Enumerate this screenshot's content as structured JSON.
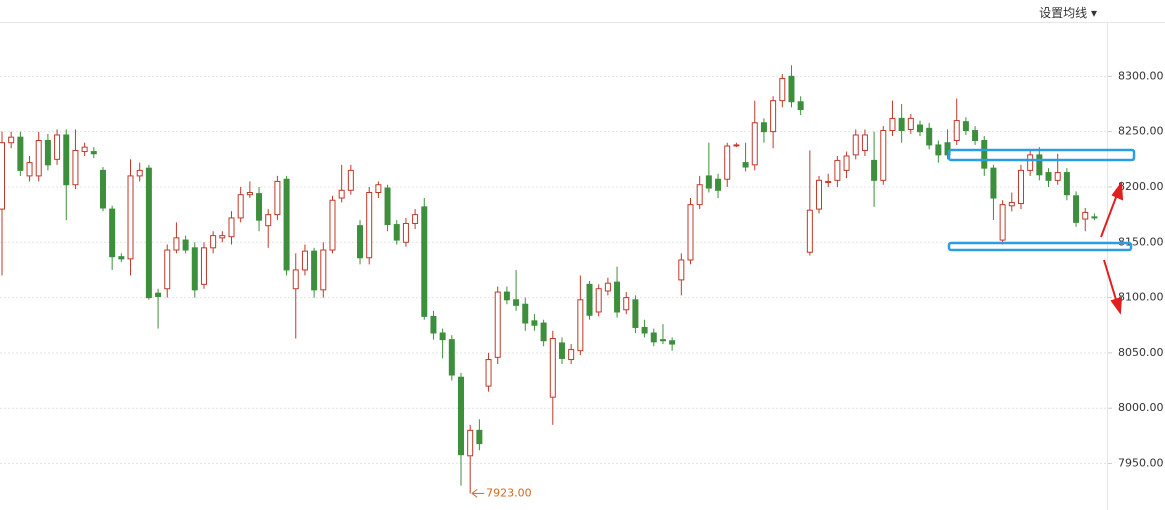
{
  "menu_label": "设置均线",
  "chart_data": {
    "type": "candlestick",
    "ylim": [
      7908,
      8369
    ],
    "yticks": [
      {
        "value": 7950,
        "label": "7950.00"
      },
      {
        "value": 8000,
        "label": "8000.00"
      },
      {
        "value": 8050,
        "label": "8050.00"
      },
      {
        "value": 8100,
        "label": "8100.00"
      },
      {
        "value": 8150,
        "label": "8150.00"
      },
      {
        "value": 8200,
        "label": "8200.00"
      },
      {
        "value": 8250,
        "label": "8250.00"
      },
      {
        "value": 8300,
        "label": "8300.00"
      }
    ],
    "grid": true,
    "up_color": "#c0392b",
    "down_color": "#3d8f3d",
    "annotations": [
      {
        "text": "7923.00",
        "value": 7923,
        "index": 51
      }
    ],
    "ohlc": [
      [
        8180,
        8240,
        8250,
        8120
      ],
      [
        8240,
        8245,
        8250,
        8235
      ],
      [
        8245,
        8215,
        8250,
        8210
      ],
      [
        8210,
        8222,
        8228,
        8205
      ],
      [
        8210,
        8242,
        8250,
        8205
      ],
      [
        8242,
        8220,
        8248,
        8215
      ],
      [
        8225,
        8247,
        8252,
        8220
      ],
      [
        8247,
        8202,
        8252,
        8170
      ],
      [
        8202,
        8233,
        8252,
        8198
      ],
      [
        8232,
        8236,
        8240,
        8228
      ],
      [
        8232,
        8230,
        8236,
        8226
      ],
      [
        8215,
        8181,
        8218,
        8178
      ],
      [
        8180,
        8137,
        8183,
        8125
      ],
      [
        8137,
        8135,
        8140,
        8132
      ],
      [
        8135,
        8210,
        8225,
        8120
      ],
      [
        8210,
        8215,
        8222,
        8205
      ],
      [
        8217,
        8100,
        8220,
        8098
      ],
      [
        8104,
        8101,
        8108,
        8072
      ],
      [
        8108,
        8143,
        8148,
        8100
      ],
      [
        8143,
        8154,
        8168,
        8140
      ],
      [
        8152,
        8143,
        8156,
        8140
      ],
      [
        8145,
        8107,
        8150,
        8100
      ],
      [
        8112,
        8145,
        8150,
        8108
      ],
      [
        8145,
        8156,
        8160,
        8140
      ],
      [
        8154,
        8156,
        8160,
        8150
      ],
      [
        8155,
        8172,
        8178,
        8148
      ],
      [
        8172,
        8193,
        8200,
        8168
      ],
      [
        8193,
        8195,
        8205,
        8190
      ],
      [
        8194,
        8170,
        8200,
        8160
      ],
      [
        8165,
        8175,
        8180,
        8145
      ],
      [
        8175,
        8205,
        8210,
        8170
      ],
      [
        8207,
        8125,
        8210,
        8120
      ],
      [
        8108,
        8125,
        8140,
        8063
      ],
      [
        8125,
        8142,
        8148,
        8120
      ],
      [
        8142,
        8107,
        8145,
        8100
      ],
      [
        8107,
        8143,
        8150,
        8100
      ],
      [
        8143,
        8188,
        8192,
        8140
      ],
      [
        8190,
        8197,
        8220,
        8186
      ],
      [
        8197,
        8215,
        8220,
        8193
      ],
      [
        8165,
        8136,
        8170,
        8130
      ],
      [
        8136,
        8195,
        8200,
        8130
      ],
      [
        8195,
        8202,
        8205,
        8190
      ],
      [
        8199,
        8166,
        8202,
        8160
      ],
      [
        8166,
        8152,
        8170,
        8148
      ],
      [
        8150,
        8167,
        8172,
        8146
      ],
      [
        8167,
        8175,
        8180,
        8162
      ],
      [
        8182,
        8083,
        8190,
        8080
      ],
      [
        8083,
        8068,
        8088,
        8062
      ],
      [
        8068,
        8062,
        8072,
        8045
      ],
      [
        8062,
        8030,
        8066,
        8025
      ],
      [
        8028,
        7958,
        8032,
        7930
      ],
      [
        7957,
        7980,
        7985,
        7923
      ],
      [
        7980,
        7968,
        7990,
        7962
      ],
      [
        8020,
        8044,
        8050,
        8015
      ],
      [
        8046,
        8105,
        8110,
        8040
      ],
      [
        8105,
        8098,
        8110,
        8094
      ],
      [
        8098,
        8093,
        8125,
        8088
      ],
      [
        8094,
        8077,
        8100,
        8070
      ],
      [
        8079,
        8075,
        8085,
        8070
      ],
      [
        8077,
        8061,
        8080,
        8056
      ],
      [
        8010,
        8063,
        8070,
        7985
      ],
      [
        8059,
        8045,
        8064,
        8040
      ],
      [
        8044,
        8053,
        8058,
        8040
      ],
      [
        8052,
        8098,
        8120,
        8048
      ],
      [
        8112,
        8084,
        8115,
        8080
      ],
      [
        8087,
        8108,
        8112,
        8083
      ],
      [
        8106,
        8113,
        8118,
        8102
      ],
      [
        8114,
        8087,
        8128,
        8082
      ],
      [
        8089,
        8100,
        8105,
        8085
      ],
      [
        8098,
        8073,
        8102,
        8068
      ],
      [
        8073,
        8068,
        8080,
        8064
      ],
      [
        8068,
        8060,
        8072,
        8056
      ],
      [
        8062,
        8061,
        8076,
        8058
      ],
      [
        8061,
        8058,
        8064,
        8052
      ],
      [
        8116,
        8134,
        8140,
        8102
      ],
      [
        8134,
        8184,
        8190,
        8130
      ],
      [
        8184,
        8202,
        8210,
        8180
      ],
      [
        8210,
        8199,
        8240,
        8195
      ],
      [
        8207,
        8197,
        8212,
        8190
      ],
      [
        8207,
        8237,
        8240,
        8200
      ],
      [
        8238,
        8238,
        8240,
        8236
      ],
      [
        8222,
        8218,
        8240,
        8214
      ],
      [
        8220,
        8258,
        8278,
        8215
      ],
      [
        8258,
        8250,
        8262,
        8240
      ],
      [
        8250,
        8278,
        8282,
        8235
      ],
      [
        8278,
        8298,
        8302,
        8272
      ],
      [
        8300,
        8277,
        8310,
        8272
      ],
      [
        8277,
        8270,
        8282,
        8265
      ],
      [
        8141,
        8179,
        8233,
        8138
      ],
      [
        8180,
        8206,
        8210,
        8176
      ],
      [
        8204,
        8205,
        8212,
        8200
      ],
      [
        8206,
        8224,
        8228,
        8200
      ],
      [
        8215,
        8228,
        8232,
        8208
      ],
      [
        8229,
        8247,
        8252,
        8225
      ],
      [
        8233,
        8247,
        8252,
        8228
      ],
      [
        8224,
        8206,
        8250,
        8182
      ],
      [
        8206,
        8251,
        8255,
        8202
      ],
      [
        8251,
        8262,
        8278,
        8246
      ],
      [
        8262,
        8251,
        8275,
        8240
      ],
      [
        8252,
        8262,
        8266,
        8248
      ],
      [
        8256,
        8250,
        8260,
        8246
      ],
      [
        8253,
        8238,
        8258,
        8234
      ],
      [
        8238,
        8229,
        8242,
        8222
      ],
      [
        8240,
        8229,
        8252,
        8225
      ],
      [
        8242,
        8260,
        8280,
        8238
      ],
      [
        8259,
        8251,
        8263,
        8247
      ],
      [
        8251,
        8242,
        8255,
        8238
      ],
      [
        8242,
        8217,
        8246,
        8210
      ],
      [
        8217,
        8190,
        8220,
        8170
      ],
      [
        8152,
        8184,
        8188,
        8148
      ],
      [
        8183,
        8186,
        8195,
        8178
      ],
      [
        8185,
        8215,
        8220,
        8180
      ],
      [
        8215,
        8229,
        8234,
        8210
      ],
      [
        8229,
        8211,
        8236,
        8206
      ],
      [
        8213,
        8206,
        8217,
        8200
      ],
      [
        8206,
        8213,
        8230,
        8202
      ],
      [
        8213,
        8193,
        8217,
        8188
      ],
      [
        8192,
        8168,
        8196,
        8164
      ],
      [
        8171,
        8177,
        8181,
        8160
      ],
      [
        8173,
        8172,
        8176,
        8170
      ]
    ]
  }
}
